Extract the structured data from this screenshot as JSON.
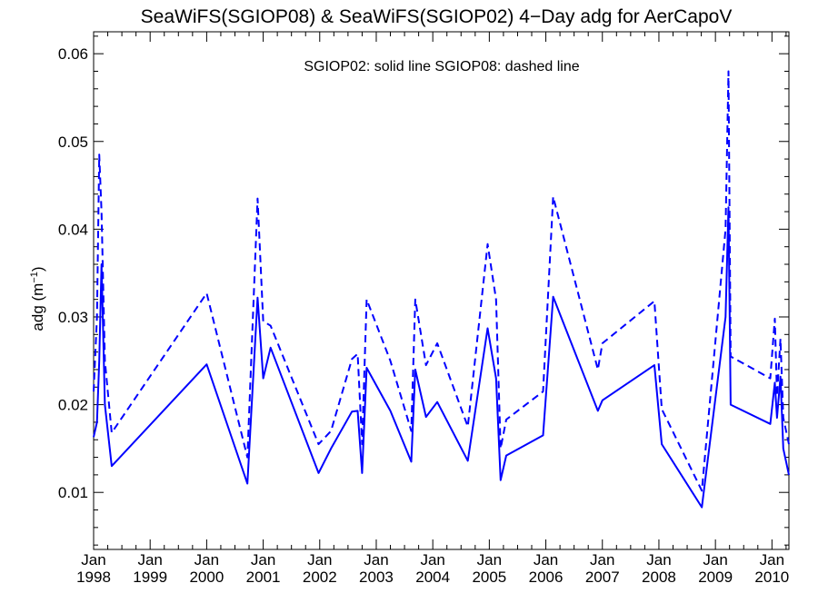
{
  "chart_data": {
    "type": "line",
    "title": "SeaWiFS(SGIOP08) & SeaWiFS(SGIOP02) 4−Day adg for AerCapoV",
    "annotation": "SGIOP02: solid line   SGIOP08: dashed line",
    "ylabel": {
      "base": "adg (m",
      "sup": "−1",
      "close": ")"
    },
    "xlabel": "",
    "xlim": [
      1998.0,
      2010.3
    ],
    "ylim": [
      0.0035,
      0.0625
    ],
    "x_ticks": [
      {
        "value": 1998,
        "month": "Jan",
        "year": "1998"
      },
      {
        "value": 1999,
        "month": "Jan",
        "year": "1999"
      },
      {
        "value": 2000,
        "month": "Jan",
        "year": "2000"
      },
      {
        "value": 2001,
        "month": "Jan",
        "year": "2001"
      },
      {
        "value": 2002,
        "month": "Jan",
        "year": "2002"
      },
      {
        "value": 2003,
        "month": "Jan",
        "year": "2003"
      },
      {
        "value": 2004,
        "month": "Jan",
        "year": "2004"
      },
      {
        "value": 2005,
        "month": "Jan",
        "year": "2005"
      },
      {
        "value": 2006,
        "month": "Jan",
        "year": "2006"
      },
      {
        "value": 2007,
        "month": "Jan",
        "year": "2007"
      },
      {
        "value": 2008,
        "month": "Jan",
        "year": "2008"
      },
      {
        "value": 2009,
        "month": "Jan",
        "year": "2009"
      },
      {
        "value": 2010,
        "month": "Jan",
        "year": "2010"
      }
    ],
    "y_ticks": [
      {
        "value": 0.01,
        "label": "0.01"
      },
      {
        "value": 0.02,
        "label": "0.02"
      },
      {
        "value": 0.03,
        "label": "0.03"
      },
      {
        "value": 0.04,
        "label": "0.04"
      },
      {
        "value": 0.05,
        "label": "0.05"
      },
      {
        "value": 0.06,
        "label": "0.06"
      }
    ],
    "grid": false,
    "series": [
      {
        "name": "SGIOP02",
        "style": "solid",
        "color": "#0000ff",
        "points": [
          [
            1998.0,
            0.0163
          ],
          [
            1998.06,
            0.018
          ],
          [
            1998.1,
            0.025
          ],
          [
            1998.14,
            0.036
          ],
          [
            1998.2,
            0.02
          ],
          [
            1998.32,
            0.013
          ],
          [
            2000.0,
            0.0246
          ],
          [
            2000.72,
            0.011
          ],
          [
            2000.9,
            0.0322
          ],
          [
            2001.0,
            0.023
          ],
          [
            2001.13,
            0.0265
          ],
          [
            2001.98,
            0.0122
          ],
          [
            2002.2,
            0.015
          ],
          [
            2002.57,
            0.0192
          ],
          [
            2002.67,
            0.0193
          ],
          [
            2002.75,
            0.0122
          ],
          [
            2002.83,
            0.0242
          ],
          [
            2003.25,
            0.0193
          ],
          [
            2003.62,
            0.0135
          ],
          [
            2003.69,
            0.024
          ],
          [
            2003.88,
            0.0186
          ],
          [
            2004.08,
            0.0203
          ],
          [
            2004.62,
            0.0136
          ],
          [
            2004.97,
            0.0287
          ],
          [
            2005.12,
            0.023
          ],
          [
            2005.2,
            0.0114
          ],
          [
            2005.3,
            0.0142
          ],
          [
            2005.95,
            0.0165
          ],
          [
            2006.13,
            0.0323
          ],
          [
            2006.92,
            0.0193
          ],
          [
            2007.0,
            0.0205
          ],
          [
            2007.92,
            0.0245
          ],
          [
            2008.05,
            0.0155
          ],
          [
            2008.76,
            0.0083
          ],
          [
            2009.18,
            0.03
          ],
          [
            2009.23,
            0.0425
          ],
          [
            2009.27,
            0.02
          ],
          [
            2009.97,
            0.0178
          ],
          [
            2010.05,
            0.0225
          ],
          [
            2010.09,
            0.0185
          ],
          [
            2010.15,
            0.0232
          ],
          [
            2010.2,
            0.015
          ],
          [
            2010.3,
            0.012
          ]
        ]
      },
      {
        "name": "SGIOP08",
        "style": "dashed",
        "color": "#0000ff",
        "points": [
          [
            1998.0,
            0.0215
          ],
          [
            1998.06,
            0.03
          ],
          [
            1998.1,
            0.0485
          ],
          [
            1998.14,
            0.042
          ],
          [
            1998.2,
            0.025
          ],
          [
            1998.32,
            0.0168
          ],
          [
            2000.0,
            0.0327
          ],
          [
            2000.72,
            0.014
          ],
          [
            2000.9,
            0.0435
          ],
          [
            2001.0,
            0.0295
          ],
          [
            2001.13,
            0.029
          ],
          [
            2001.98,
            0.0155
          ],
          [
            2002.2,
            0.017
          ],
          [
            2002.57,
            0.0252
          ],
          [
            2002.67,
            0.0258
          ],
          [
            2002.75,
            0.0155
          ],
          [
            2002.83,
            0.032
          ],
          [
            2003.25,
            0.025
          ],
          [
            2003.62,
            0.017
          ],
          [
            2003.69,
            0.032
          ],
          [
            2003.88,
            0.0245
          ],
          [
            2004.08,
            0.027
          ],
          [
            2004.62,
            0.0175
          ],
          [
            2004.97,
            0.0383
          ],
          [
            2005.12,
            0.032
          ],
          [
            2005.2,
            0.015
          ],
          [
            2005.3,
            0.0183
          ],
          [
            2005.95,
            0.0215
          ],
          [
            2006.13,
            0.0437
          ],
          [
            2006.92,
            0.024
          ],
          [
            2007.0,
            0.027
          ],
          [
            2007.92,
            0.0318
          ],
          [
            2008.05,
            0.0195
          ],
          [
            2008.76,
            0.0102
          ],
          [
            2009.18,
            0.04
          ],
          [
            2009.23,
            0.058
          ],
          [
            2009.27,
            0.0255
          ],
          [
            2009.97,
            0.023
          ],
          [
            2010.05,
            0.0298
          ],
          [
            2010.09,
            0.021
          ],
          [
            2010.15,
            0.0275
          ],
          [
            2010.2,
            0.0185
          ],
          [
            2010.3,
            0.0155
          ]
        ]
      }
    ]
  }
}
